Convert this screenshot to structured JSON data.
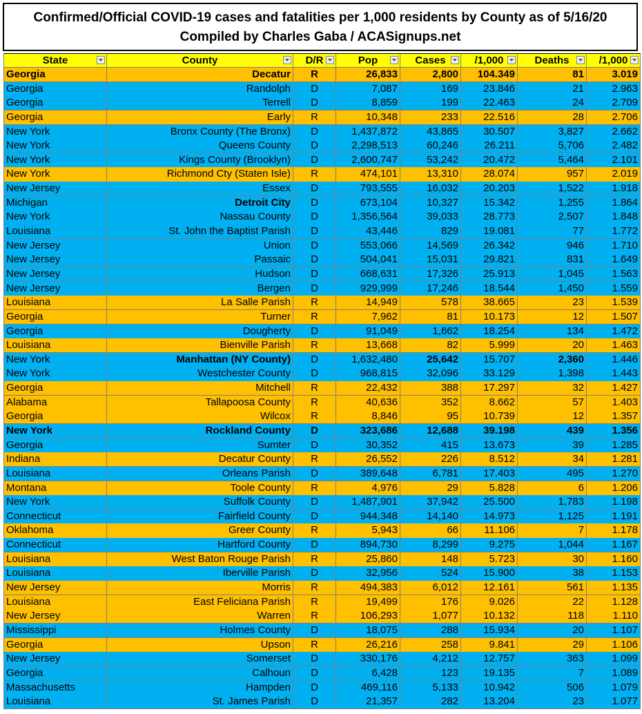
{
  "title": [
    "Confirmed/Official COVID-19 cases and fatalities per 1,000 residents by County as of 5/16/20",
    "Compiled by Charles Gaba / ACASignups.net"
  ],
  "table": {
    "header": [
      "State",
      "County",
      "D/R",
      "Pop",
      "Cases",
      "/1,000",
      "Deaths",
      "/1,000"
    ],
    "rows": [
      [
        "Georgia",
        "Decatur",
        "R",
        "26,833",
        "2,800",
        "104.349",
        "81",
        "3.019"
      ],
      [
        "Georgia",
        "Randolph",
        "D",
        "7,087",
        "169",
        "23.846",
        "21",
        "2.963"
      ],
      [
        "Georgia",
        "Terrell",
        "D",
        "8,859",
        "199",
        "22.463",
        "24",
        "2.709"
      ],
      [
        "Georgia",
        "Early",
        "R",
        "10,348",
        "233",
        "22.516",
        "28",
        "2.706"
      ],
      [
        "New York",
        "Bronx County (The Bronx)",
        "D",
        "1,437,872",
        "43,865",
        "30.507",
        "3,827",
        "2.662"
      ],
      [
        "New York",
        "Queens County",
        "D",
        "2,298,513",
        "60,246",
        "26.211",
        "5,706",
        "2.482"
      ],
      [
        "New York",
        "Kings County (Brooklyn)",
        "D",
        "2,600,747",
        "53,242",
        "20.472",
        "5,464",
        "2.101"
      ],
      [
        "New York",
        "Richmond Cty (Staten Isle)",
        "R",
        "474,101",
        "13,310",
        "28.074",
        "957",
        "2.019"
      ],
      [
        "New Jersey",
        "Essex",
        "D",
        "793,555",
        "16,032",
        "20.203",
        "1,522",
        "1.918"
      ],
      [
        "Michigan",
        "Detroit City",
        "D",
        "673,104",
        "10,327",
        "15.342",
        "1,255",
        "1.864"
      ],
      [
        "New York",
        "Nassau County",
        "D",
        "1,356,564",
        "39,033",
        "28.773",
        "2,507",
        "1.848"
      ],
      [
        "Louisiana",
        "St. John the Baptist Parish",
        "D",
        "43,446",
        "829",
        "19.081",
        "77",
        "1.772"
      ],
      [
        "New Jersey",
        "Union",
        "D",
        "553,066",
        "14,569",
        "26.342",
        "946",
        "1.710"
      ],
      [
        "New Jersey",
        "Passaic",
        "D",
        "504,041",
        "15,031",
        "29.821",
        "831",
        "1.649"
      ],
      [
        "New Jersey",
        "Hudson",
        "D",
        "668,631",
        "17,326",
        "25.913",
        "1,045",
        "1.563"
      ],
      [
        "New Jersey",
        "Bergen",
        "D",
        "929,999",
        "17,246",
        "18.544",
        "1,450",
        "1.559"
      ],
      [
        "Louisiana",
        "La Salle Parish",
        "R",
        "14,949",
        "578",
        "38.665",
        "23",
        "1.539"
      ],
      [
        "Georgia",
        "Turner",
        "R",
        "7,962",
        "81",
        "10.173",
        "12",
        "1.507"
      ],
      [
        "Georgia",
        "Dougherty",
        "D",
        "91,049",
        "1,662",
        "18.254",
        "134",
        "1.472"
      ],
      [
        "Louisiana",
        "Bienville Parish",
        "R",
        "13,668",
        "82",
        "5.999",
        "20",
        "1.463"
      ],
      [
        "New York",
        "Manhattan (NY County)",
        "D",
        "1,632,480",
        "25,642",
        "15.707",
        "2,360",
        "1.446"
      ],
      [
        "New York",
        "Westchester County",
        "D",
        "968,815",
        "32,096",
        "33.129",
        "1,398",
        "1.443"
      ],
      [
        "Georgia",
        "Mitchell",
        "R",
        "22,432",
        "388",
        "17.297",
        "32",
        "1.427"
      ],
      [
        "Alabama",
        "Tallapoosa County",
        "R",
        "40,636",
        "352",
        "8.662",
        "57",
        "1.403"
      ],
      [
        "Georgia",
        "Wilcox",
        "R",
        "8,846",
        "95",
        "10.739",
        "12",
        "1.357"
      ],
      [
        "New York",
        "Rockland County",
        "D",
        "323,686",
        "12,688",
        "39.198",
        "439",
        "1.356"
      ],
      [
        "Georgia",
        "Sumter",
        "D",
        "30,352",
        "415",
        "13.673",
        "39",
        "1.285"
      ],
      [
        "Indiana",
        "Decatur County",
        "R",
        "26,552",
        "226",
        "8.512",
        "34",
        "1.281"
      ],
      [
        "Louisiana",
        "Orleans Parish",
        "D",
        "389,648",
        "6,781",
        "17.403",
        "495",
        "1.270"
      ],
      [
        "Montana",
        "Toole County",
        "R",
        "4,976",
        "29",
        "5.828",
        "6",
        "1.206"
      ],
      [
        "New York",
        "Suffolk County",
        "D",
        "1,487,901",
        "37,942",
        "25.500",
        "1,783",
        "1.198"
      ],
      [
        "Connecticut",
        "Fairfield County",
        "D",
        "944,348",
        "14,140",
        "14.973",
        "1,125",
        "1.191"
      ],
      [
        "Oklahoma",
        "Greer County",
        "R",
        "5,943",
        "66",
        "11.106",
        "7",
        "1.178"
      ],
      [
        "Connecticut",
        "Hartford County",
        "D",
        "894,730",
        "8,299",
        "9.275",
        "1,044",
        "1.167"
      ],
      [
        "Louisiana",
        "West Baton Rouge Parish",
        "R",
        "25,860",
        "148",
        "5.723",
        "30",
        "1.160"
      ],
      [
        "Louisiana",
        "Iberville Parish",
        "D",
        "32,956",
        "524",
        "15.900",
        "38",
        "1.153"
      ],
      [
        "New Jersey",
        "Morris",
        "R",
        "494,383",
        "6,012",
        "12.161",
        "561",
        "1.135"
      ],
      [
        "Louisiana",
        "East Feliciana Parish",
        "R",
        "19,499",
        "176",
        "9.026",
        "22",
        "1.128"
      ],
      [
        "New Jersey",
        "Warren",
        "R",
        "106,293",
        "1,077",
        "10.132",
        "118",
        "1.110"
      ],
      [
        "Mississippi",
        "Holmes County",
        "D",
        "18,075",
        "288",
        "15.934",
        "20",
        "1.107"
      ],
      [
        "Georgia",
        "Upson",
        "R",
        "26,216",
        "258",
        "9.841",
        "29",
        "1.106"
      ],
      [
        "New Jersey",
        "Somerset",
        "D",
        "330,176",
        "4,212",
        "12.757",
        "363",
        "1.099"
      ],
      [
        "Georgia",
        "Calhoun",
        "D",
        "6,428",
        "123",
        "19.135",
        "7",
        "1.089"
      ],
      [
        "Massachusetts",
        "Hampden",
        "D",
        "469,116",
        "5,133",
        "10.942",
        "506",
        "1.079"
      ],
      [
        "Louisiana",
        "St. James Parish",
        "D",
        "21,357",
        "282",
        "13.204",
        "23",
        "1.077"
      ]
    ]
  }
}
